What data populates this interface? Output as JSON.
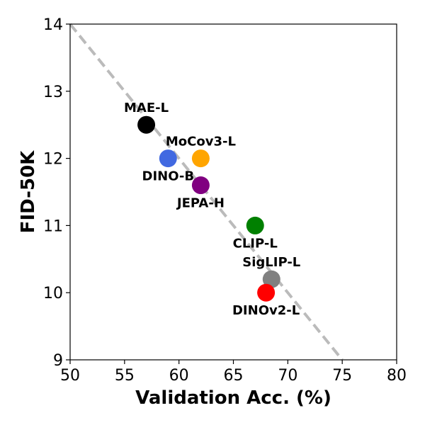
{
  "chart_data": {
    "type": "scatter",
    "xlabel": "Validation Acc. (%)",
    "ylabel": "FID-50K",
    "xlim": [
      50,
      80
    ],
    "ylim": [
      9,
      14
    ],
    "xticks": [
      50,
      55,
      60,
      65,
      70,
      75,
      80
    ],
    "yticks": [
      9,
      10,
      11,
      12,
      13,
      14
    ],
    "grid": false,
    "legend": "none",
    "trend_line": {
      "from": [
        50,
        14
      ],
      "to": [
        75,
        9
      ],
      "color": "#bbbbbb",
      "style": "dashed"
    },
    "points": [
      {
        "name": "MAE-L",
        "x": 57,
        "y": 12.5,
        "color": "#000000",
        "label_pos": "above"
      },
      {
        "name": "DINO-B",
        "x": 59,
        "y": 12.0,
        "color": "#4169e1",
        "label_pos": "below"
      },
      {
        "name": "MoCov3-L",
        "x": 62,
        "y": 12.0,
        "color": "#ffa500",
        "label_pos": "above"
      },
      {
        "name": "JEPA-H",
        "x": 62,
        "y": 11.6,
        "color": "#800080",
        "label_pos": "below"
      },
      {
        "name": "CLIP-L",
        "x": 67,
        "y": 11.0,
        "color": "#008000",
        "label_pos": "below"
      },
      {
        "name": "SigLIP-L",
        "x": 68.5,
        "y": 10.2,
        "color": "#808080",
        "label_pos": "above"
      },
      {
        "name": "DINOv2-L",
        "x": 68,
        "y": 10.0,
        "color": "#ff0000",
        "label_pos": "below"
      }
    ]
  }
}
